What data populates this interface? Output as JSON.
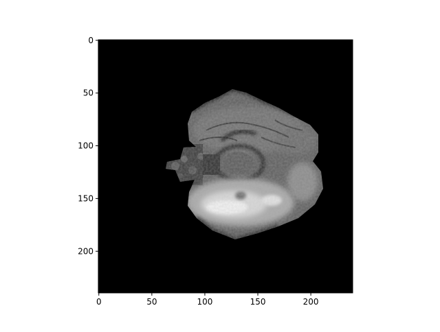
{
  "figure": {
    "background_color": "#ffffff",
    "image": {
      "kind": "grayscale brain MRI slice",
      "colormap": "gray",
      "background": "#000000",
      "bright_region_color": "#f2f2f2"
    },
    "x_axis": {
      "range": [
        0,
        239
      ],
      "ticks": [
        {
          "value": 0,
          "label": "0"
        },
        {
          "value": 50,
          "label": "50"
        },
        {
          "value": 100,
          "label": "100"
        },
        {
          "value": 150,
          "label": "150"
        },
        {
          "value": 200,
          "label": "200"
        }
      ]
    },
    "y_axis": {
      "range": [
        0,
        239
      ],
      "inverted": true,
      "ticks": [
        {
          "value": 0,
          "label": "0"
        },
        {
          "value": 50,
          "label": "50"
        },
        {
          "value": 100,
          "label": "100"
        },
        {
          "value": 150,
          "label": "150"
        },
        {
          "value": 200,
          "label": "200"
        }
      ]
    },
    "axis_color": "#000000"
  }
}
